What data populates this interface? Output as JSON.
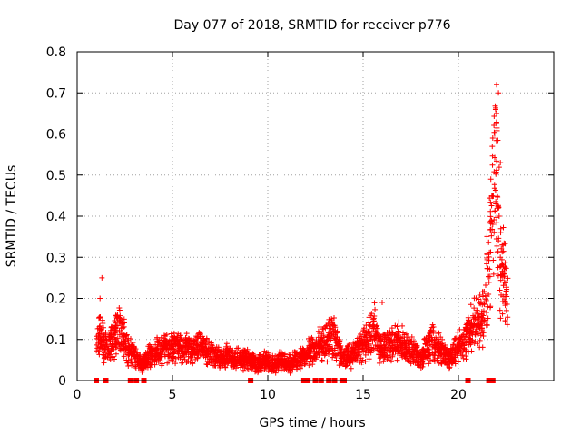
{
  "chart_data": {
    "type": "scatter",
    "title": "Day 077 of 2018, SRMTID for receiver p776",
    "xlabel": "GPS time / hours",
    "ylabel": "SRMTID / TECUs",
    "xlim": [
      0,
      25
    ],
    "ylim": [
      0,
      0.8
    ],
    "xticks": [
      0,
      5,
      10,
      15,
      20
    ],
    "yticks": [
      0,
      0.1,
      0.2,
      0.3,
      0.4,
      0.5,
      0.6,
      0.7,
      0.8
    ],
    "xtick_labels": [
      "0",
      "5",
      "10",
      "15",
      "20"
    ],
    "ytick_labels": [
      "0",
      "0.1",
      "0.2",
      "0.3",
      "0.4",
      "0.5",
      "0.6",
      "0.7",
      "0.8"
    ],
    "color": "#ff0000",
    "series": [
      {
        "name": "SRMTID",
        "marker": "plus",
        "note": "approximate baseline envelope sampled from the plotted cloud",
        "x": [
          1.0,
          1.2,
          1.4,
          1.6,
          1.8,
          2.0,
          2.2,
          2.4,
          2.6,
          2.8,
          3.0,
          3.2,
          3.4,
          3.6,
          3.8,
          4.0,
          4.2,
          4.4,
          4.6,
          4.8,
          5.0,
          5.2,
          5.4,
          5.6,
          5.8,
          6.0,
          6.2,
          6.4,
          6.6,
          6.8,
          7.0,
          7.2,
          7.4,
          7.6,
          7.8,
          8.0,
          8.2,
          8.4,
          8.6,
          8.8,
          9.0,
          9.2,
          9.4,
          9.6,
          9.8,
          10.0,
          10.2,
          10.4,
          10.6,
          10.8,
          11.0,
          11.2,
          11.4,
          11.6,
          11.8,
          12.0,
          12.2,
          12.4,
          12.6,
          12.8,
          13.0,
          13.2,
          13.4,
          13.6,
          13.8,
          14.0,
          14.2,
          14.4,
          14.6,
          14.8,
          15.0,
          15.2,
          15.4,
          15.6,
          15.8,
          16.0,
          16.2,
          16.4,
          16.6,
          16.8,
          17.0,
          17.2,
          17.4,
          17.6,
          17.8,
          18.0,
          18.2,
          18.4,
          18.6,
          18.8,
          19.0,
          19.2,
          19.4,
          19.6,
          19.8,
          20.0,
          20.2,
          20.4,
          20.6,
          20.8,
          21.0,
          21.2,
          21.4,
          21.6,
          21.8,
          22.0,
          22.2,
          22.4,
          22.6
        ],
        "y": [
          0.1,
          0.12,
          0.09,
          0.08,
          0.09,
          0.11,
          0.13,
          0.12,
          0.08,
          0.07,
          0.06,
          0.05,
          0.04,
          0.05,
          0.06,
          0.06,
          0.07,
          0.07,
          0.08,
          0.08,
          0.08,
          0.09,
          0.08,
          0.07,
          0.08,
          0.07,
          0.08,
          0.09,
          0.08,
          0.07,
          0.07,
          0.06,
          0.06,
          0.05,
          0.06,
          0.06,
          0.05,
          0.06,
          0.05,
          0.05,
          0.05,
          0.05,
          0.04,
          0.04,
          0.05,
          0.05,
          0.04,
          0.04,
          0.05,
          0.05,
          0.04,
          0.04,
          0.05,
          0.05,
          0.06,
          0.06,
          0.07,
          0.07,
          0.08,
          0.09,
          0.09,
          0.1,
          0.11,
          0.09,
          0.07,
          0.05,
          0.06,
          0.06,
          0.07,
          0.08,
          0.09,
          0.1,
          0.11,
          0.13,
          0.09,
          0.08,
          0.08,
          0.09,
          0.09,
          0.1,
          0.09,
          0.08,
          0.07,
          0.07,
          0.06,
          0.05,
          0.07,
          0.08,
          0.1,
          0.09,
          0.08,
          0.07,
          0.06,
          0.06,
          0.07,
          0.08,
          0.09,
          0.1,
          0.12,
          0.13,
          0.14,
          0.15,
          0.18,
          0.28,
          0.45,
          0.5,
          0.3,
          0.25,
          0.18
        ],
        "spikes": [
          {
            "x": 1.3,
            "y": 0.25
          },
          {
            "x": 1.2,
            "y": 0.2
          },
          {
            "x": 16.0,
            "y": 0.19
          },
          {
            "x": 21.9,
            "y": 0.6
          },
          {
            "x": 22.0,
            "y": 0.72
          },
          {
            "x": 22.1,
            "y": 0.7
          },
          {
            "x": 22.0,
            "y": 0.65
          },
          {
            "x": 21.8,
            "y": 0.59
          },
          {
            "x": 22.2,
            "y": 0.53
          },
          {
            "x": 21.7,
            "y": 0.49
          },
          {
            "x": 22.1,
            "y": 0.42
          },
          {
            "x": 21.8,
            "y": 0.38
          },
          {
            "x": 22.3,
            "y": 0.33
          }
        ]
      }
    ],
    "gap_markers_x": [
      1.0,
      1.5,
      2.8,
      3.1,
      3.5,
      9.1,
      11.9,
      12.1,
      12.5,
      12.8,
      13.2,
      13.5,
      13.9,
      14.0,
      20.5,
      21.6,
      21.8
    ]
  }
}
